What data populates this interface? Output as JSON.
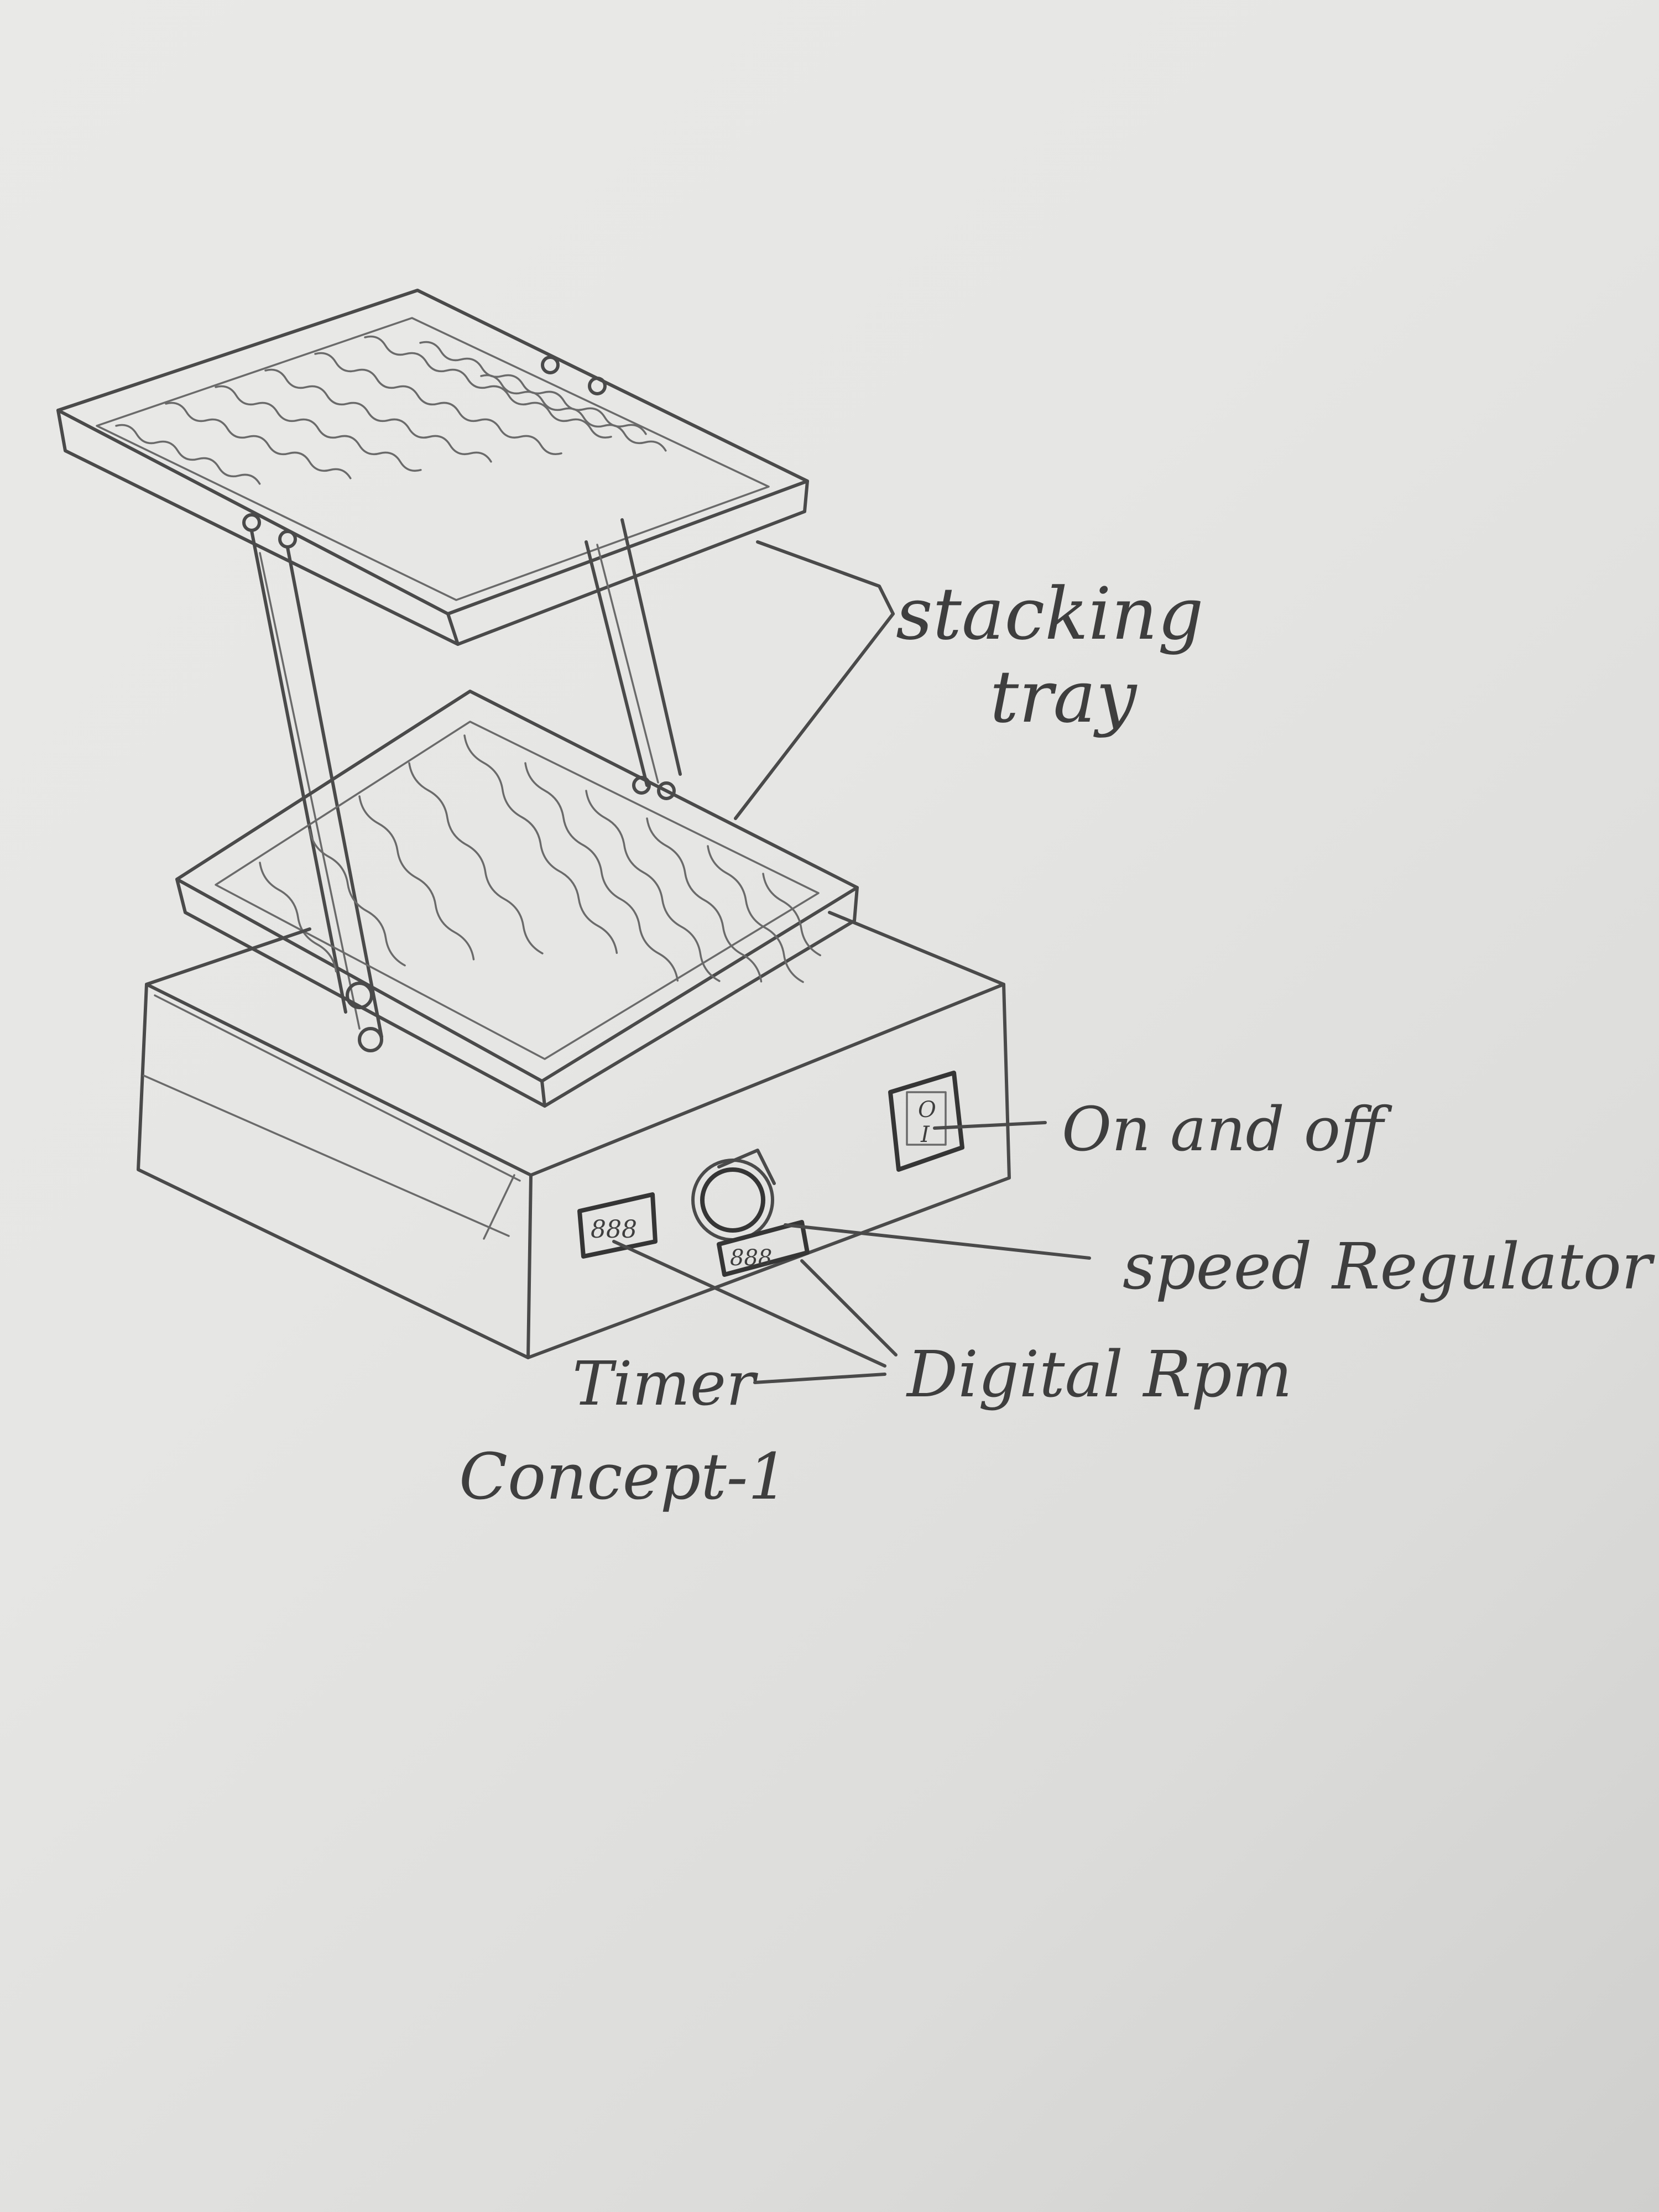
{
  "labels": {
    "stacking_tray_line1": "stacking",
    "stacking_tray_line2": "tray",
    "on_and_off": "On and off",
    "speed_regulator": "speed Regulator",
    "digital_rpm": "Digital Rpm",
    "timer": "Timer",
    "concept": "Concept-1"
  },
  "display_digits": {
    "timer_display": "888",
    "rpm_display": "888"
  },
  "switch_symbols": {
    "off": "O",
    "on": "I"
  },
  "colors": {
    "paper": "#e4e4e2",
    "pencil": "#4a4a4a"
  }
}
